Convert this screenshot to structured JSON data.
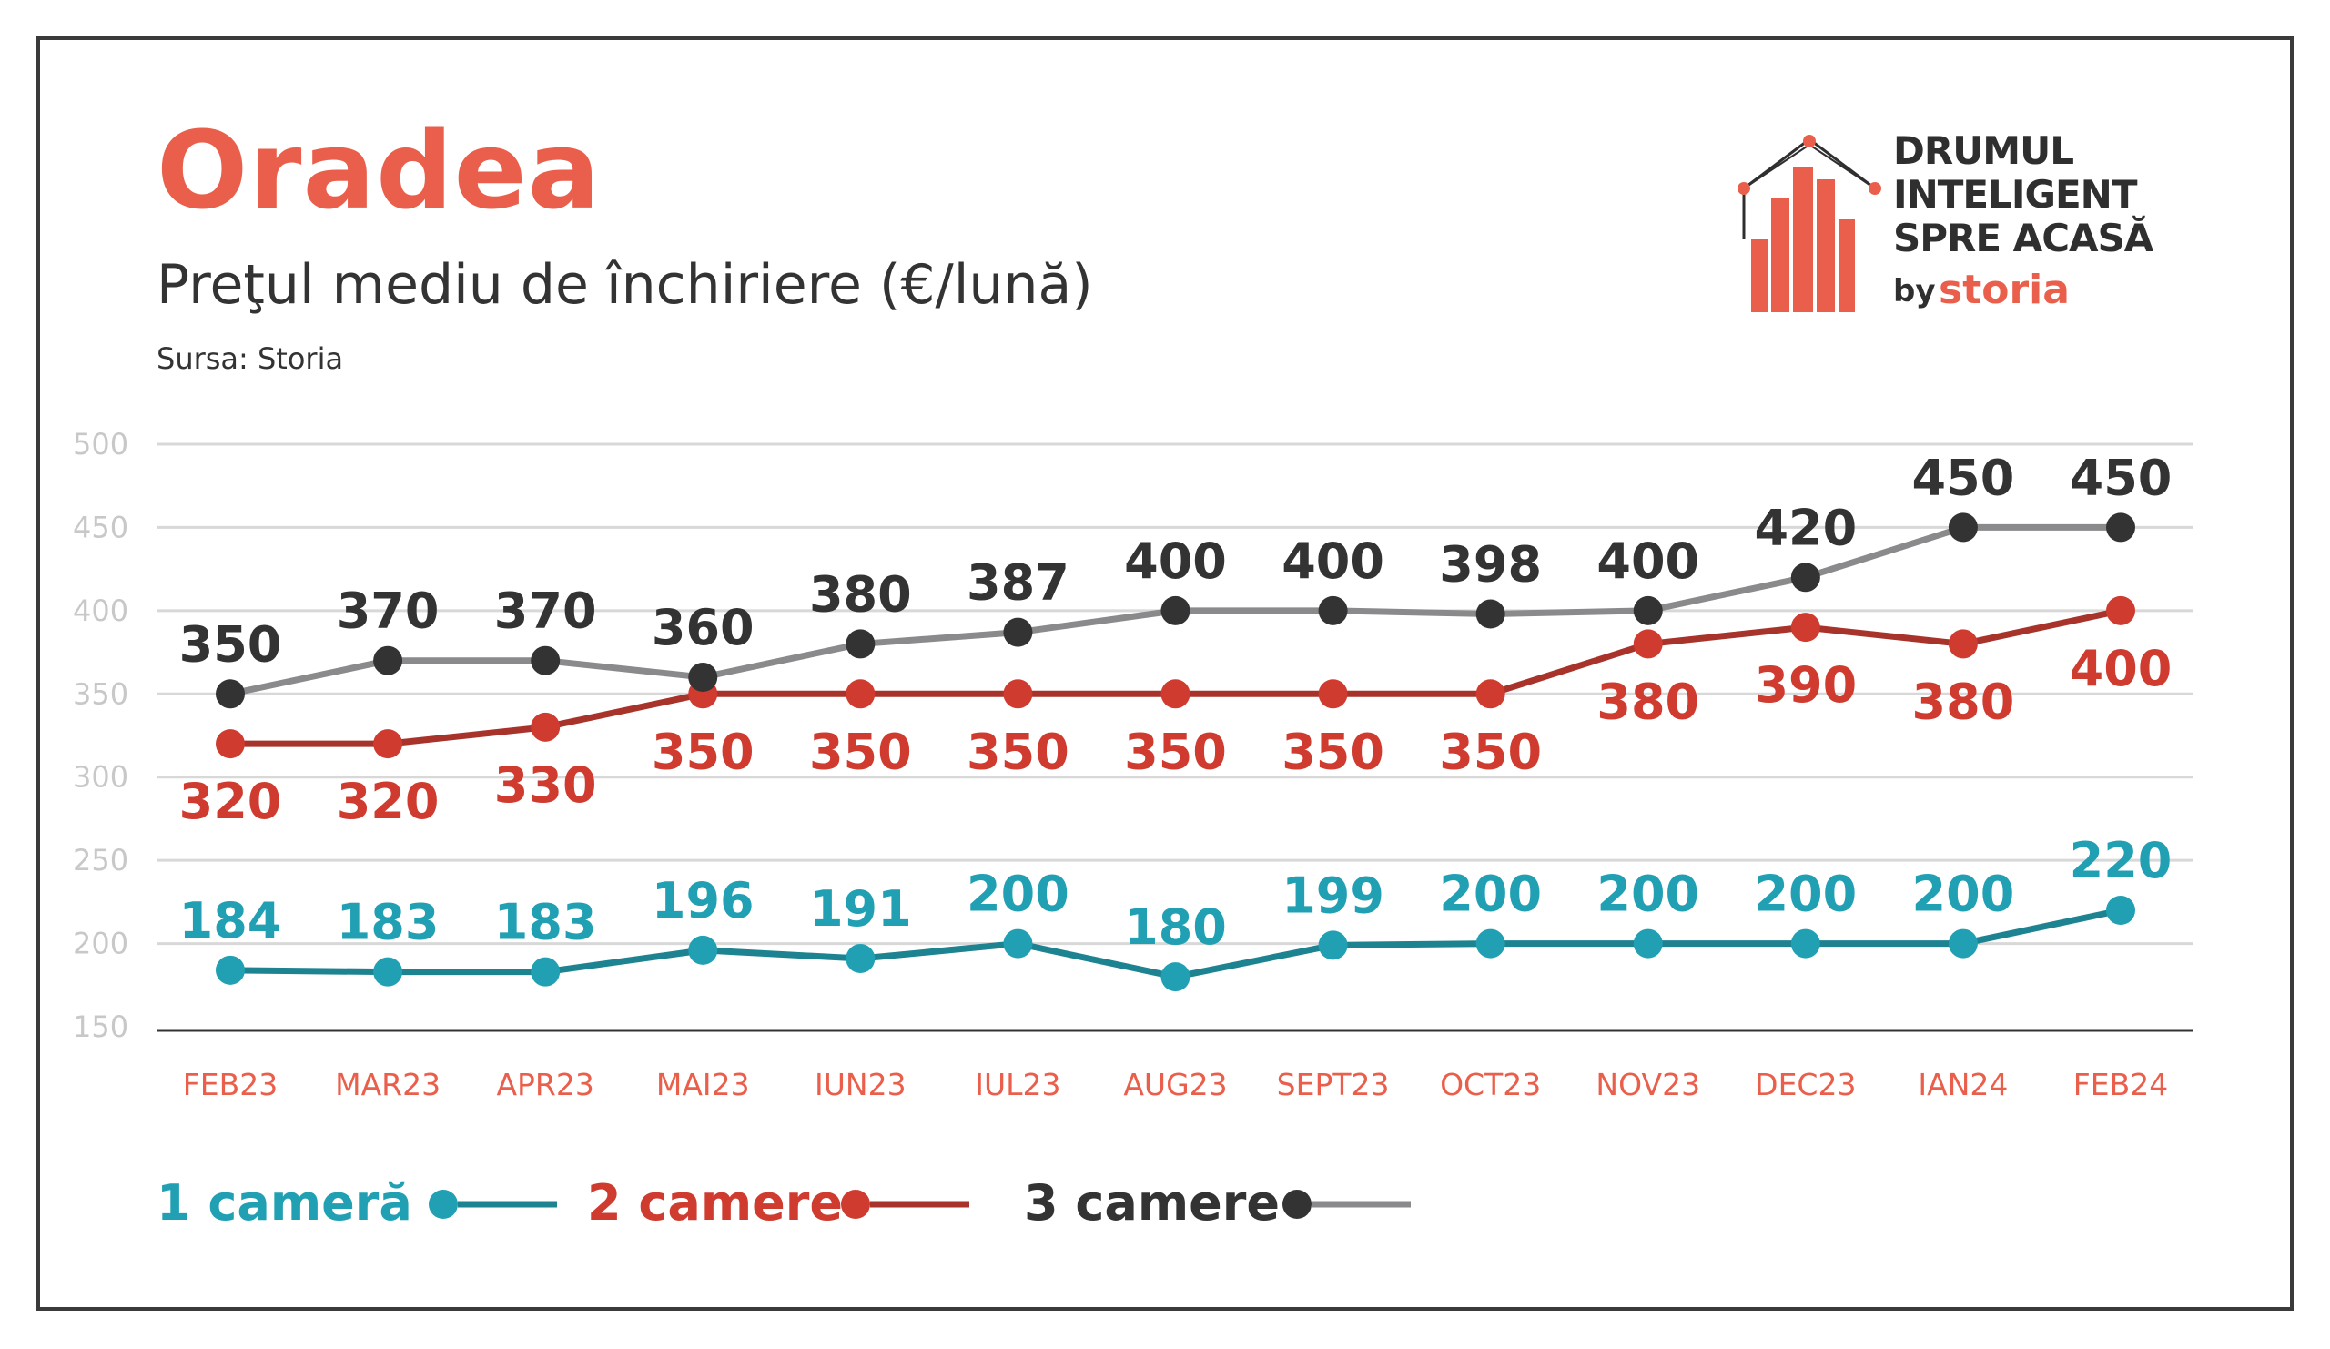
{
  "header": {
    "title": "Oradea",
    "subtitle": "Preţul mediu de închiriere (€/lună)",
    "source": "Sursa: Storia"
  },
  "brand": {
    "line1": "DRUMUL",
    "line2": "INTELIGENT",
    "line3": "SPRE ACASĂ",
    "by": "by",
    "storia": "storia",
    "icon": "house-bars-logo-icon"
  },
  "colors": {
    "series1": "#21a0b4",
    "series1_line": "#1e8391",
    "series2": "#cf3b2f",
    "series2_line": "#a8332a",
    "series3": "#333333",
    "series3_line": "#8a8a8c",
    "accent": "#ea5f4b",
    "grid": "#d8d8d8",
    "tick": "#c8c8c8"
  },
  "chart_data": {
    "type": "line",
    "title": "Preţul mediu de închiriere (€/lună)",
    "categories": [
      "FEB23",
      "MAR23",
      "APR23",
      "MAI23",
      "IUN23",
      "IUL23",
      "AUG23",
      "SEPT23",
      "OCT23",
      "NOV23",
      "DEC23",
      "IAN24",
      "FEB24"
    ],
    "yticks": [
      500,
      450,
      400,
      350,
      300,
      250,
      200,
      150
    ],
    "ylim": [
      150,
      500
    ],
    "grid": true,
    "legend_position": "bottom-left",
    "series": [
      {
        "name": "1 cameră",
        "values": [
          184,
          183,
          183,
          196,
          191,
          200,
          180,
          199,
          200,
          200,
          200,
          200,
          220
        ]
      },
      {
        "name": "2 camere",
        "values": [
          320,
          320,
          330,
          350,
          350,
          350,
          350,
          350,
          350,
          380,
          390,
          380,
          400
        ]
      },
      {
        "name": "3 camere",
        "values": [
          350,
          370,
          370,
          360,
          380,
          387,
          400,
          400,
          398,
          400,
          420,
          450,
          450
        ]
      }
    ]
  }
}
